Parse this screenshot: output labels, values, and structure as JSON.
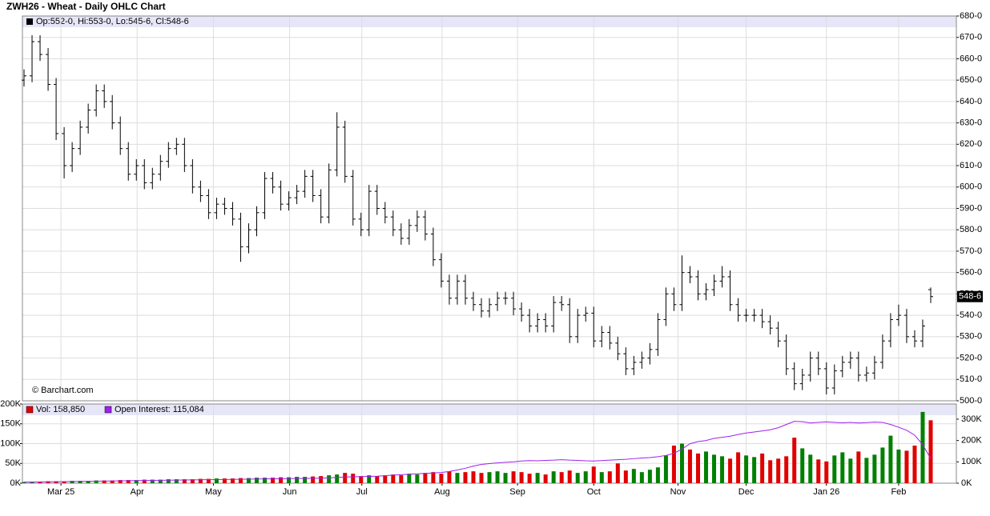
{
  "chart_data": {
    "type": "ohlc",
    "title": "ZWH26 - Wheat - Daily OHLC Chart",
    "legend_text": "Op:552-0, Hi:553-0, Lo:545-6, Cl:548-6",
    "credit": "© Barchart.com",
    "volume_legend": "Vol: 158,850",
    "oi_legend": "Open Interest: 115,084",
    "last_price_label": "548-6",
    "up_color": "#008000",
    "down_color": "#e00000",
    "oi_color": "#a020f0",
    "grid": true,
    "xlim": [
      0,
      113
    ],
    "xticks": [
      {
        "value": 4.6,
        "label": "Mar 25"
      },
      {
        "value": 14.1,
        "label": "Apr"
      },
      {
        "value": 23.6,
        "label": "May"
      },
      {
        "value": 33.1,
        "label": "Jun"
      },
      {
        "value": 42.1,
        "label": "Jul"
      },
      {
        "value": 52.1,
        "label": "Aug"
      },
      {
        "value": 61.5,
        "label": "Sep"
      },
      {
        "value": 71,
        "label": "Oct"
      },
      {
        "value": 81.5,
        "label": "Nov"
      },
      {
        "value": 90,
        "label": "Dec"
      },
      {
        "value": 100,
        "label": "Jan 26"
      },
      {
        "value": 109,
        "label": "Feb"
      }
    ],
    "ylim": [
      500,
      680
    ],
    "yticks": [
      {
        "value": 500,
        "label": "500-0"
      },
      {
        "value": 510,
        "label": "510-0"
      },
      {
        "value": 520,
        "label": "520-0"
      },
      {
        "value": 530,
        "label": "530-0"
      },
      {
        "value": 540,
        "label": "540-0"
      },
      {
        "value": 550,
        "label": "550-0"
      },
      {
        "value": 560,
        "label": "560-0"
      },
      {
        "value": 570,
        "label": "570-0"
      },
      {
        "value": 580,
        "label": "580-0"
      },
      {
        "value": 590,
        "label": "590-0"
      },
      {
        "value": 600,
        "label": "600-0"
      },
      {
        "value": 610,
        "label": "610-0"
      },
      {
        "value": 620,
        "label": "620-0"
      },
      {
        "value": 630,
        "label": "630-0"
      },
      {
        "value": 640,
        "label": "640-0"
      },
      {
        "value": 650,
        "label": "650-0"
      },
      {
        "value": 660,
        "label": "660-0"
      },
      {
        "value": 670,
        "label": "670-0"
      },
      {
        "value": 680,
        "label": "680-0"
      }
    ],
    "vol_ylim": [
      0,
      200000
    ],
    "vol_yticks": [
      {
        "value": 0,
        "label": "0K"
      },
      {
        "value": 50000,
        "label": "50K"
      },
      {
        "value": 100000,
        "label": "100K"
      },
      {
        "value": 150000,
        "label": "150K"
      },
      {
        "value": 200000,
        "label": "200K"
      }
    ],
    "y2lim": [
      0,
      371000
    ],
    "y2ticks": [
      {
        "value": 0,
        "label": "0K"
      },
      {
        "value": 100000,
        "label": "100K"
      },
      {
        "value": 200000,
        "label": "200K"
      },
      {
        "value": 300000,
        "label": "300K"
      }
    ],
    "open": [
      650,
      652,
      668,
      662,
      648,
      625,
      610,
      618,
      628,
      636,
      645,
      640,
      630,
      618,
      606,
      610,
      602,
      606,
      612,
      618,
      620,
      610,
      600,
      596,
      588,
      592,
      590,
      585,
      572,
      580,
      588,
      604,
      600,
      592,
      595,
      598,
      605,
      596,
      586,
      608,
      628,
      605,
      585,
      580,
      598,
      590,
      586,
      580,
      576,
      582,
      586,
      578,
      566,
      556,
      548,
      556,
      548,
      545,
      542,
      545,
      548,
      548,
      543,
      540,
      535,
      538,
      535,
      546,
      545,
      530,
      540,
      541,
      528,
      532,
      527,
      522,
      515,
      518,
      520,
      524,
      538,
      550,
      545,
      560,
      558,
      550,
      552,
      556,
      558,
      545,
      540,
      540,
      540,
      537,
      534,
      528,
      515,
      508,
      512,
      520,
      515,
      506,
      514,
      518,
      520,
      512,
      513,
      518,
      528,
      538,
      540,
      530,
      528,
      552
    ],
    "high": [
      655,
      671,
      671,
      665,
      651,
      628,
      621,
      631,
      639,
      648,
      648,
      643,
      633,
      621,
      613,
      613,
      609,
      615,
      621,
      623,
      623,
      613,
      603,
      599,
      595,
      595,
      593,
      588,
      583,
      591,
      607,
      607,
      603,
      598,
      601,
      608,
      608,
      599,
      611,
      635,
      631,
      608,
      588,
      601,
      601,
      593,
      589,
      583,
      585,
      589,
      589,
      581,
      569,
      559,
      559,
      559,
      551,
      548,
      548,
      551,
      551,
      551,
      546,
      543,
      541,
      541,
      549,
      549,
      548,
      543,
      544,
      544,
      535,
      535,
      530,
      525,
      521,
      523,
      527,
      541,
      553,
      553,
      568,
      563,
      561,
      555,
      559,
      563,
      561,
      548,
      543,
      543,
      543,
      540,
      537,
      531,
      518,
      515,
      523,
      523,
      518,
      517,
      521,
      523,
      523,
      516,
      521,
      531,
      541,
      545,
      543,
      533,
      538,
      553
    ],
    "low": [
      647,
      649,
      659,
      645,
      622,
      604,
      607,
      615,
      625,
      633,
      637,
      627,
      615,
      603,
      603,
      599,
      599,
      603,
      609,
      615,
      607,
      597,
      593,
      585,
      585,
      587,
      582,
      565,
      569,
      577,
      585,
      597,
      589,
      589,
      592,
      595,
      593,
      583,
      583,
      605,
      602,
      582,
      577,
      577,
      587,
      583,
      577,
      573,
      573,
      579,
      575,
      563,
      553,
      545,
      545,
      545,
      542,
      539,
      539,
      542,
      545,
      540,
      537,
      532,
      532,
      532,
      532,
      542,
      527,
      527,
      537,
      525,
      525,
      524,
      519,
      512,
      512,
      515,
      517,
      521,
      535,
      542,
      542,
      555,
      547,
      547,
      549,
      553,
      542,
      537,
      537,
      537,
      534,
      531,
      525,
      512,
      505,
      505,
      509,
      512,
      503,
      503,
      511,
      515,
      509,
      509,
      510,
      515,
      525,
      535,
      527,
      525,
      525,
      545.75
    ],
    "close": [
      652,
      668,
      662,
      648,
      625,
      610,
      618,
      628,
      636,
      645,
      640,
      630,
      618,
      606,
      610,
      602,
      606,
      612,
      618,
      620,
      610,
      600,
      596,
      588,
      592,
      590,
      585,
      572,
      580,
      588,
      604,
      600,
      592,
      595,
      598,
      605,
      596,
      586,
      608,
      628,
      605,
      585,
      580,
      598,
      590,
      586,
      580,
      576,
      582,
      586,
      578,
      566,
      556,
      548,
      556,
      548,
      545,
      542,
      545,
      548,
      548,
      543,
      540,
      535,
      538,
      535,
      546,
      545,
      530,
      540,
      541,
      528,
      532,
      527,
      522,
      515,
      518,
      520,
      524,
      538,
      550,
      545,
      560,
      558,
      550,
      552,
      556,
      558,
      545,
      540,
      540,
      540,
      537,
      534,
      528,
      515,
      508,
      512,
      520,
      515,
      506,
      514,
      518,
      520,
      512,
      513,
      518,
      528,
      538,
      540,
      530,
      528,
      535,
      548.75
    ],
    "volume": [
      3000,
      4000,
      4000,
      5000,
      5000,
      5000,
      6000,
      6000,
      6000,
      7000,
      7000,
      7000,
      8000,
      8000,
      8000,
      9000,
      9000,
      9000,
      10000,
      10000,
      10000,
      10000,
      11000,
      11000,
      12000,
      12000,
      12000,
      13000,
      13000,
      14000,
      14000,
      14000,
      15000,
      15000,
      16000,
      16000,
      17000,
      18000,
      20000,
      22000,
      26000,
      24000,
      18000,
      20000,
      18000,
      20000,
      22000,
      20000,
      24000,
      22000,
      26000,
      28000,
      24000,
      30000,
      26000,
      28000,
      30000,
      26000,
      28000,
      30000,
      26000,
      30000,
      28000,
      24000,
      26000,
      22000,
      30000,
      28000,
      32000,
      26000,
      30000,
      42000,
      28000,
      30000,
      50000,
      32000,
      36000,
      28000,
      34000,
      40000,
      70000,
      95000,
      100000,
      85000,
      75000,
      80000,
      72000,
      68000,
      62000,
      78000,
      70000,
      66000,
      75000,
      58000,
      62000,
      68000,
      115000,
      88000,
      72000,
      60000,
      55000,
      70000,
      78000,
      62000,
      80000,
      64000,
      72000,
      90000,
      120000,
      85000,
      82000,
      95000,
      180000,
      158850
    ],
    "open_interest": [
      5000,
      5500,
      6000,
      6500,
      7000,
      7500,
      8000,
      8500,
      9000,
      9500,
      10000,
      10500,
      11000,
      11500,
      12000,
      12500,
      13000,
      13500,
      14000,
      14500,
      15000,
      15500,
      16000,
      16500,
      17000,
      17500,
      18000,
      18500,
      19000,
      19500,
      20000,
      20500,
      21000,
      21500,
      22000,
      22500,
      23000,
      24000,
      25000,
      27000,
      29000,
      30000,
      31000,
      32000,
      33000,
      35000,
      38000,
      40000,
      42000,
      44000,
      46000,
      48000,
      50000,
      55000,
      62000,
      70000,
      80000,
      88000,
      92000,
      95000,
      98000,
      100000,
      104000,
      106000,
      105000,
      107000,
      108000,
      110000,
      108000,
      107000,
      105000,
      104000,
      106000,
      108000,
      110000,
      112000,
      115000,
      118000,
      120000,
      124000,
      130000,
      140000,
      160000,
      185000,
      195000,
      200000,
      210000,
      215000,
      220000,
      228000,
      235000,
      240000,
      245000,
      250000,
      260000,
      275000,
      290000,
      288000,
      282000,
      285000,
      287000,
      285000,
      283000,
      285000,
      282000,
      284000,
      286000,
      285000,
      275000,
      262000,
      248000,
      225000,
      180000,
      115084
    ]
  }
}
